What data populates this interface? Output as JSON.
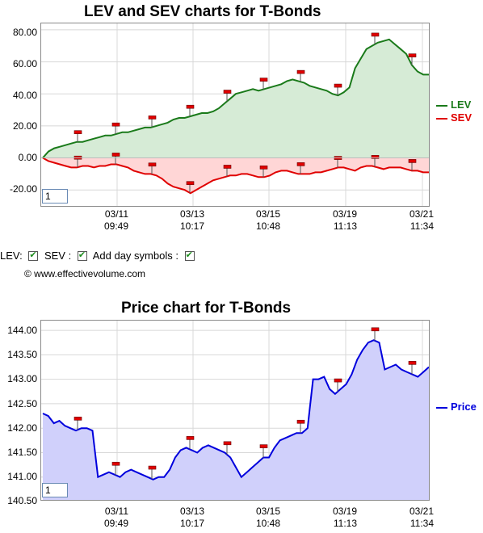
{
  "chart_data": [
    {
      "type": "area",
      "title": "LEV and SEV charts for T-Bonds",
      "ylim": [
        -31,
        84
      ],
      "y_ticks": [
        "80.00",
        "60.00",
        "40.00",
        "20.00",
        "0.00",
        "-20.00"
      ],
      "x_tick_labels": [
        {
          "date": "03/11",
          "time": "09:49"
        },
        {
          "date": "03/13",
          "time": "10:17"
        },
        {
          "date": "03/15",
          "time": "10:48"
        },
        {
          "date": "03/19",
          "time": "11:13"
        },
        {
          "date": "03/21",
          "time": "11:34"
        }
      ],
      "grid": true,
      "legend_position": "right",
      "series": [
        {
          "name": "LEV",
          "color": "#1a7a1a",
          "fill": "#d6ebd6",
          "values": [
            0,
            4,
            6,
            7,
            8,
            9,
            10,
            10,
            11,
            12,
            13,
            14,
            14,
            15,
            16,
            16,
            17,
            18,
            19,
            19,
            20,
            21,
            22,
            24,
            25,
            25,
            26,
            27,
            28,
            28,
            29,
            31,
            34,
            37,
            40,
            41,
            42,
            43,
            42,
            43,
            44,
            45,
            46,
            48,
            49,
            48,
            47,
            45,
            44,
            43,
            42,
            40,
            39,
            41,
            44,
            56,
            62,
            68,
            70,
            72,
            73,
            74,
            71,
            68,
            65,
            58,
            54,
            52,
            52
          ]
        },
        {
          "name": "SEV",
          "color": "#e00000",
          "fill": "#ffd6d6",
          "values": [
            0,
            -2,
            -3,
            -4,
            -5,
            -6,
            -6,
            -5,
            -5,
            -6,
            -5,
            -5,
            -4,
            -4,
            -5,
            -6,
            -8,
            -9,
            -10,
            -10,
            -11,
            -13,
            -16,
            -18,
            -19,
            -20,
            -22,
            -20,
            -18,
            -16,
            -14,
            -13,
            -12,
            -11,
            -11,
            -10,
            -10,
            -11,
            -12,
            -12,
            -11,
            -9,
            -8,
            -8,
            -9,
            -10,
            -10,
            -10,
            -9,
            -9,
            -8,
            -7,
            -6,
            -6,
            -7,
            -8,
            -6,
            -5,
            -5,
            -6,
            -7,
            -6,
            -6,
            -6,
            -7,
            -8,
            -8,
            -9,
            -9
          ]
        }
      ]
    },
    {
      "type": "area",
      "title": "Price chart for T-Bonds",
      "ylim": [
        140.5,
        144.2
      ],
      "y_ticks": [
        "144.00",
        "143.50",
        "143.00",
        "142.50",
        "142.00",
        "141.50",
        "141.00",
        "140.50"
      ],
      "x_tick_labels": [
        {
          "date": "03/11",
          "time": "09:49"
        },
        {
          "date": "03/13",
          "time": "10:17"
        },
        {
          "date": "03/15",
          "time": "10:48"
        },
        {
          "date": "03/19",
          "time": "11:13"
        },
        {
          "date": "03/21",
          "time": "11:34"
        }
      ],
      "grid": true,
      "legend_position": "right",
      "series": [
        {
          "name": "Price",
          "color": "#0000dd",
          "fill": "#d0d0fb",
          "values": [
            142.3,
            142.25,
            142.1,
            142.15,
            142.05,
            142.0,
            141.95,
            142.0,
            142.0,
            141.95,
            141.0,
            141.05,
            141.1,
            141.05,
            141.0,
            141.1,
            141.15,
            141.1,
            141.05,
            141.0,
            140.95,
            141.0,
            141.0,
            141.15,
            141.4,
            141.55,
            141.6,
            141.55,
            141.5,
            141.6,
            141.65,
            141.6,
            141.55,
            141.5,
            141.4,
            141.2,
            141.0,
            141.1,
            141.2,
            141.3,
            141.4,
            141.4,
            141.6,
            141.75,
            141.8,
            141.85,
            141.9,
            141.9,
            142.0,
            143.0,
            143.0,
            143.05,
            142.8,
            142.7,
            142.8,
            142.9,
            143.1,
            143.4,
            143.6,
            143.75,
            143.8,
            143.75,
            143.2,
            143.25,
            143.3,
            143.2,
            143.15,
            143.1,
            143.05,
            143.15,
            143.25
          ]
        }
      ]
    }
  ],
  "controls": {
    "lev_label": "LEV:",
    "sev_label": "SEV :",
    "day_symbols_label": "Add day symbols :"
  },
  "copyright": "© www.effectivevolume.com",
  "input_box_value": "1",
  "ticks_top": [
    "80.00",
    "60.00",
    "40.00",
    "20.00",
    "0.00",
    "-20.00"
  ]
}
